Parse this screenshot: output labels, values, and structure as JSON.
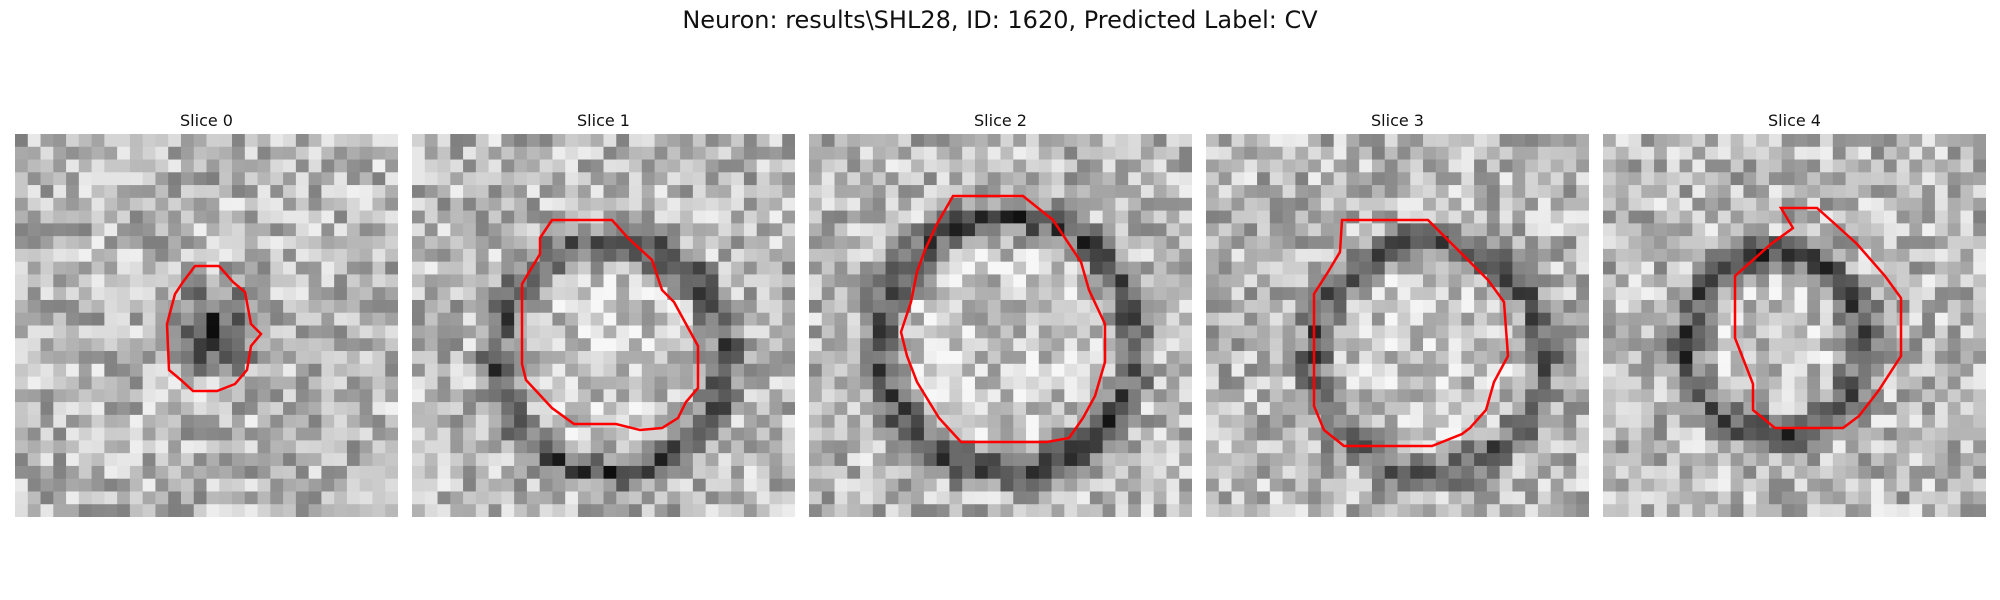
{
  "figure": {
    "title": "Neuron: results\\SHL28, ID: 1620, Predicted Label: CV"
  },
  "colors": {
    "contour": "#ff0000",
    "background": "#ffffff"
  },
  "slices": [
    {
      "label": "Slice 0"
    },
    {
      "label": "Slice 1"
    },
    {
      "label": "Slice 2"
    },
    {
      "label": "Slice 3"
    },
    {
      "label": "Slice 4"
    }
  ]
}
